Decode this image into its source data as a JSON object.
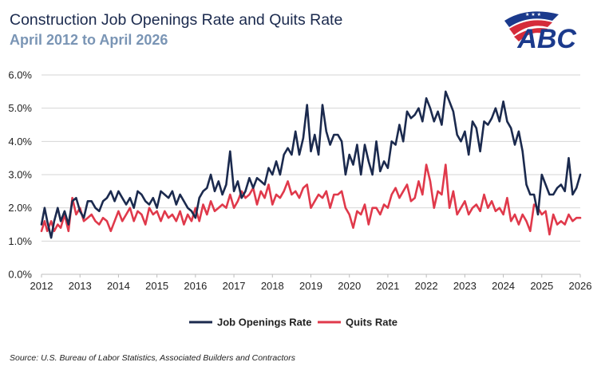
{
  "header": {
    "title": "Construction Job Openings Rate and Quits Rate",
    "subtitle": "April 2012 to April 2026"
  },
  "logo": {
    "text": "ABC",
    "colors": {
      "navy": "#1b3a8c",
      "red": "#d52b3a"
    }
  },
  "footer": {
    "source": "Source: U.S. Bureau of Labor Statistics, Associated Builders and Contractors"
  },
  "colors": {
    "job_openings": "#1b2a4e",
    "quits": "#e0394b",
    "gridline": "#d6d6d6"
  },
  "chart_data": {
    "type": "line",
    "title": "Construction Job Openings Rate and Quits Rate",
    "subtitle": "April 2012 to April 2026",
    "xlabel": "",
    "ylabel": "",
    "xlim": [
      2012.0,
      2026.0
    ],
    "ylim": [
      0,
      6
    ],
    "x_ticks": [
      "2012",
      "2013",
      "2014",
      "2015",
      "2016",
      "2017",
      "2018",
      "2019",
      "2020",
      "2021",
      "2022",
      "2023",
      "2024",
      "2025",
      "2026"
    ],
    "y_ticks": [
      "0.0%",
      "1.0%",
      "2.0%",
      "3.0%",
      "4.0%",
      "5.0%",
      "6.0%"
    ],
    "y_tick_values": [
      0,
      1,
      2,
      3,
      4,
      5,
      6
    ],
    "grid": "horizontal",
    "legend": "bottom-center",
    "series": [
      {
        "name": "Job Openings Rate",
        "color": "#1b2a4e",
        "points": [
          [
            2012.0,
            1.5
          ],
          [
            2012.08,
            2.0
          ],
          [
            2012.15,
            1.6
          ],
          [
            2012.25,
            1.1
          ],
          [
            2012.33,
            1.6
          ],
          [
            2012.42,
            2.0
          ],
          [
            2012.5,
            1.6
          ],
          [
            2012.6,
            1.9
          ],
          [
            2012.7,
            1.5
          ],
          [
            2012.8,
            2.2
          ],
          [
            2012.9,
            2.3
          ],
          [
            2013.0,
            1.9
          ],
          [
            2013.1,
            1.7
          ],
          [
            2013.2,
            2.2
          ],
          [
            2013.3,
            2.2
          ],
          [
            2013.4,
            2.0
          ],
          [
            2013.5,
            1.9
          ],
          [
            2013.6,
            2.2
          ],
          [
            2013.7,
            2.3
          ],
          [
            2013.8,
            2.5
          ],
          [
            2013.9,
            2.2
          ],
          [
            2014.0,
            2.5
          ],
          [
            2014.1,
            2.3
          ],
          [
            2014.2,
            2.1
          ],
          [
            2014.3,
            2.3
          ],
          [
            2014.4,
            2.0
          ],
          [
            2014.5,
            2.5
          ],
          [
            2014.6,
            2.4
          ],
          [
            2014.7,
            2.2
          ],
          [
            2014.8,
            2.1
          ],
          [
            2014.9,
            2.3
          ],
          [
            2015.0,
            2.0
          ],
          [
            2015.1,
            2.5
          ],
          [
            2015.2,
            2.4
          ],
          [
            2015.3,
            2.3
          ],
          [
            2015.4,
            2.5
          ],
          [
            2015.5,
            2.1
          ],
          [
            2015.6,
            2.4
          ],
          [
            2015.7,
            2.2
          ],
          [
            2015.8,
            2.0
          ],
          [
            2015.9,
            1.9
          ],
          [
            2016.0,
            1.7
          ],
          [
            2016.1,
            2.3
          ],
          [
            2016.2,
            2.5
          ],
          [
            2016.3,
            2.6
          ],
          [
            2016.4,
            3.0
          ],
          [
            2016.5,
            2.5
          ],
          [
            2016.6,
            2.8
          ],
          [
            2016.7,
            2.4
          ],
          [
            2016.8,
            2.7
          ],
          [
            2016.9,
            3.7
          ],
          [
            2017.0,
            2.5
          ],
          [
            2017.1,
            2.8
          ],
          [
            2017.2,
            2.3
          ],
          [
            2017.3,
            2.5
          ],
          [
            2017.4,
            2.9
          ],
          [
            2017.5,
            2.6
          ],
          [
            2017.6,
            2.9
          ],
          [
            2017.7,
            2.8
          ],
          [
            2017.8,
            2.7
          ],
          [
            2017.9,
            3.2
          ],
          [
            2018.0,
            3.0
          ],
          [
            2018.1,
            3.4
          ],
          [
            2018.2,
            3.0
          ],
          [
            2018.3,
            3.6
          ],
          [
            2018.4,
            3.8
          ],
          [
            2018.5,
            3.6
          ],
          [
            2018.6,
            4.3
          ],
          [
            2018.7,
            3.6
          ],
          [
            2018.8,
            4.1
          ],
          [
            2018.9,
            5.1
          ],
          [
            2019.0,
            3.7
          ],
          [
            2019.1,
            4.2
          ],
          [
            2019.2,
            3.6
          ],
          [
            2019.3,
            5.1
          ],
          [
            2019.4,
            4.3
          ],
          [
            2019.5,
            3.9
          ],
          [
            2019.6,
            4.2
          ],
          [
            2019.7,
            4.2
          ],
          [
            2019.8,
            4.0
          ],
          [
            2019.9,
            3.0
          ],
          [
            2020.0,
            3.6
          ],
          [
            2020.1,
            3.3
          ],
          [
            2020.2,
            3.9
          ],
          [
            2020.3,
            3.0
          ],
          [
            2020.4,
            3.9
          ],
          [
            2020.5,
            3.4
          ],
          [
            2020.6,
            3.0
          ],
          [
            2020.7,
            4.0
          ],
          [
            2020.8,
            3.1
          ],
          [
            2020.9,
            3.4
          ],
          [
            2021.0,
            3.2
          ],
          [
            2021.1,
            4.0
          ],
          [
            2021.2,
            3.9
          ],
          [
            2021.3,
            4.5
          ],
          [
            2021.4,
            4.0
          ],
          [
            2021.5,
            4.9
          ],
          [
            2021.6,
            4.7
          ],
          [
            2021.7,
            4.8
          ],
          [
            2021.8,
            5.0
          ],
          [
            2021.9,
            4.6
          ],
          [
            2022.0,
            5.3
          ],
          [
            2022.1,
            5.0
          ],
          [
            2022.2,
            4.6
          ],
          [
            2022.3,
            4.9
          ],
          [
            2022.4,
            4.5
          ],
          [
            2022.5,
            5.5
          ],
          [
            2022.6,
            5.2
          ],
          [
            2022.7,
            4.9
          ],
          [
            2022.8,
            4.2
          ],
          [
            2022.9,
            4.0
          ],
          [
            2023.0,
            4.3
          ],
          [
            2023.1,
            3.6
          ],
          [
            2023.2,
            4.6
          ],
          [
            2023.3,
            4.4
          ],
          [
            2023.4,
            3.7
          ],
          [
            2023.5,
            4.6
          ],
          [
            2023.6,
            4.5
          ],
          [
            2023.7,
            4.7
          ],
          [
            2023.8,
            5.0
          ],
          [
            2023.9,
            4.6
          ],
          [
            2024.0,
            5.2
          ],
          [
            2024.1,
            4.6
          ],
          [
            2024.2,
            4.4
          ],
          [
            2024.3,
            3.9
          ],
          [
            2024.4,
            4.3
          ],
          [
            2024.5,
            3.7
          ],
          [
            2024.6,
            2.7
          ],
          [
            2024.7,
            2.4
          ],
          [
            2024.8,
            2.4
          ],
          [
            2024.9,
            1.8
          ],
          [
            2025.0,
            3.0
          ],
          [
            2025.1,
            2.7
          ],
          [
            2025.2,
            2.4
          ],
          [
            2025.3,
            2.4
          ],
          [
            2025.4,
            2.6
          ],
          [
            2025.5,
            2.7
          ],
          [
            2025.6,
            2.5
          ],
          [
            2025.7,
            3.5
          ],
          [
            2025.8,
            2.4
          ],
          [
            2025.9,
            2.6
          ],
          [
            2026.0,
            3.0
          ]
        ]
      },
      {
        "name": "Quits Rate",
        "color": "#e0394b",
        "points": [
          [
            2012.0,
            1.3
          ],
          [
            2012.08,
            1.6
          ],
          [
            2012.15,
            1.3
          ],
          [
            2012.25,
            1.6
          ],
          [
            2012.33,
            1.3
          ],
          [
            2012.42,
            1.5
          ],
          [
            2012.5,
            1.4
          ],
          [
            2012.6,
            1.8
          ],
          [
            2012.7,
            1.3
          ],
          [
            2012.8,
            2.3
          ],
          [
            2012.9,
            1.8
          ],
          [
            2013.0,
            2.0
          ],
          [
            2013.1,
            1.6
          ],
          [
            2013.2,
            1.7
          ],
          [
            2013.3,
            1.8
          ],
          [
            2013.4,
            1.6
          ],
          [
            2013.5,
            1.5
          ],
          [
            2013.6,
            1.7
          ],
          [
            2013.7,
            1.6
          ],
          [
            2013.8,
            1.3
          ],
          [
            2013.9,
            1.6
          ],
          [
            2014.0,
            1.9
          ],
          [
            2014.1,
            1.6
          ],
          [
            2014.2,
            1.8
          ],
          [
            2014.3,
            2.0
          ],
          [
            2014.4,
            1.6
          ],
          [
            2014.5,
            1.9
          ],
          [
            2014.6,
            1.8
          ],
          [
            2014.7,
            1.5
          ],
          [
            2014.8,
            2.0
          ],
          [
            2014.9,
            1.8
          ],
          [
            2015.0,
            1.9
          ],
          [
            2015.1,
            1.6
          ],
          [
            2015.2,
            1.9
          ],
          [
            2015.3,
            1.7
          ],
          [
            2015.4,
            1.8
          ],
          [
            2015.5,
            1.6
          ],
          [
            2015.6,
            1.9
          ],
          [
            2015.7,
            1.5
          ],
          [
            2015.8,
            1.8
          ],
          [
            2015.9,
            1.6
          ],
          [
            2016.0,
            2.0
          ],
          [
            2016.1,
            1.6
          ],
          [
            2016.2,
            2.1
          ],
          [
            2016.3,
            1.8
          ],
          [
            2016.4,
            2.2
          ],
          [
            2016.5,
            1.9
          ],
          [
            2016.6,
            2.0
          ],
          [
            2016.7,
            2.1
          ],
          [
            2016.8,
            2.0
          ],
          [
            2016.9,
            2.4
          ],
          [
            2017.0,
            2.0
          ],
          [
            2017.1,
            2.2
          ],
          [
            2017.2,
            2.5
          ],
          [
            2017.3,
            2.3
          ],
          [
            2017.4,
            2.4
          ],
          [
            2017.5,
            2.6
          ],
          [
            2017.6,
            2.1
          ],
          [
            2017.7,
            2.5
          ],
          [
            2017.8,
            2.3
          ],
          [
            2017.9,
            2.7
          ],
          [
            2018.0,
            2.1
          ],
          [
            2018.1,
            2.4
          ],
          [
            2018.2,
            2.3
          ],
          [
            2018.3,
            2.5
          ],
          [
            2018.4,
            2.8
          ],
          [
            2018.5,
            2.4
          ],
          [
            2018.6,
            2.5
          ],
          [
            2018.7,
            2.3
          ],
          [
            2018.8,
            2.6
          ],
          [
            2018.9,
            2.7
          ],
          [
            2019.0,
            2.0
          ],
          [
            2019.1,
            2.2
          ],
          [
            2019.2,
            2.4
          ],
          [
            2019.3,
            2.3
          ],
          [
            2019.4,
            2.5
          ],
          [
            2019.5,
            2.0
          ],
          [
            2019.6,
            2.4
          ],
          [
            2019.7,
            2.4
          ],
          [
            2019.8,
            2.5
          ],
          [
            2019.9,
            2.0
          ],
          [
            2020.0,
            1.8
          ],
          [
            2020.1,
            1.4
          ],
          [
            2020.2,
            1.9
          ],
          [
            2020.3,
            1.8
          ],
          [
            2020.4,
            2.1
          ],
          [
            2020.5,
            1.5
          ],
          [
            2020.6,
            2.0
          ],
          [
            2020.7,
            2.0
          ],
          [
            2020.8,
            1.8
          ],
          [
            2020.9,
            2.1
          ],
          [
            2021.0,
            2.0
          ],
          [
            2021.1,
            2.4
          ],
          [
            2021.2,
            2.6
          ],
          [
            2021.3,
            2.3
          ],
          [
            2021.4,
            2.5
          ],
          [
            2021.5,
            2.7
          ],
          [
            2021.6,
            2.2
          ],
          [
            2021.7,
            2.3
          ],
          [
            2021.8,
            2.8
          ],
          [
            2021.9,
            2.4
          ],
          [
            2022.0,
            3.3
          ],
          [
            2022.1,
            2.8
          ],
          [
            2022.2,
            2.0
          ],
          [
            2022.3,
            2.5
          ],
          [
            2022.4,
            2.4
          ],
          [
            2022.5,
            3.3
          ],
          [
            2022.6,
            2.0
          ],
          [
            2022.7,
            2.5
          ],
          [
            2022.8,
            1.8
          ],
          [
            2022.9,
            2.0
          ],
          [
            2023.0,
            2.2
          ],
          [
            2023.1,
            1.8
          ],
          [
            2023.2,
            2.0
          ],
          [
            2023.3,
            2.1
          ],
          [
            2023.4,
            1.9
          ],
          [
            2023.5,
            2.4
          ],
          [
            2023.6,
            2.0
          ],
          [
            2023.7,
            2.2
          ],
          [
            2023.8,
            1.9
          ],
          [
            2023.9,
            2.0
          ],
          [
            2024.0,
            1.8
          ],
          [
            2024.1,
            2.3
          ],
          [
            2024.2,
            1.6
          ],
          [
            2024.3,
            1.8
          ],
          [
            2024.4,
            1.5
          ],
          [
            2024.5,
            1.8
          ],
          [
            2024.6,
            1.6
          ],
          [
            2024.7,
            1.3
          ],
          [
            2024.8,
            2.1
          ],
          [
            2024.9,
            2.0
          ],
          [
            2025.0,
            1.8
          ],
          [
            2025.1,
            1.9
          ],
          [
            2025.2,
            1.2
          ],
          [
            2025.3,
            1.8
          ],
          [
            2025.4,
            1.5
          ],
          [
            2025.5,
            1.6
          ],
          [
            2025.6,
            1.5
          ],
          [
            2025.7,
            1.8
          ],
          [
            2025.8,
            1.6
          ],
          [
            2025.9,
            1.7
          ],
          [
            2026.0,
            1.7
          ]
        ]
      }
    ]
  }
}
